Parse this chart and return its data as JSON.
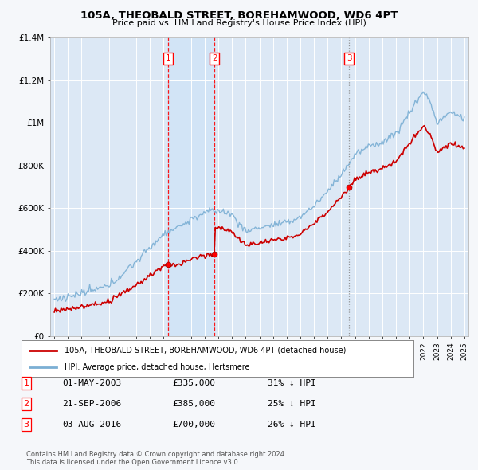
{
  "title": "105A, THEOBALD STREET, BOREHAMWOOD, WD6 4PT",
  "subtitle": "Price paid vs. HM Land Registry's House Price Index (HPI)",
  "hpi_color": "#7bafd4",
  "price_color": "#cc0000",
  "background_color": "#f5f7fa",
  "plot_bg": "#dce8f5",
  "sale_years": [
    2003.33,
    2006.72,
    2016.58
  ],
  "sale_prices": [
    335000,
    385000,
    700000
  ],
  "sale_labels": [
    "1",
    "2",
    "3"
  ],
  "legend_labels": [
    "105A, THEOBALD STREET, BOREHAMWOOD, WD6 4PT (detached house)",
    "HPI: Average price, detached house, Hertsmere"
  ],
  "table_data": [
    [
      "1",
      "01-MAY-2003",
      "£335,000",
      "31% ↓ HPI"
    ],
    [
      "2",
      "21-SEP-2006",
      "£385,000",
      "25% ↓ HPI"
    ],
    [
      "3",
      "03-AUG-2016",
      "£700,000",
      "26% ↓ HPI"
    ]
  ],
  "footer": "Contains HM Land Registry data © Crown copyright and database right 2024.\nThis data is licensed under the Open Government Licence v3.0.",
  "ylim": [
    0,
    1400000
  ],
  "yticks": [
    0,
    200000,
    400000,
    600000,
    800000,
    1000000,
    1200000,
    1400000
  ],
  "ytick_labels": [
    "£0",
    "£200K",
    "£400K",
    "£600K",
    "£800K",
    "£1M",
    "£1.2M",
    "£1.4M"
  ],
  "shade_between": [
    0,
    1
  ],
  "shade_color": "#d0e4f7"
}
